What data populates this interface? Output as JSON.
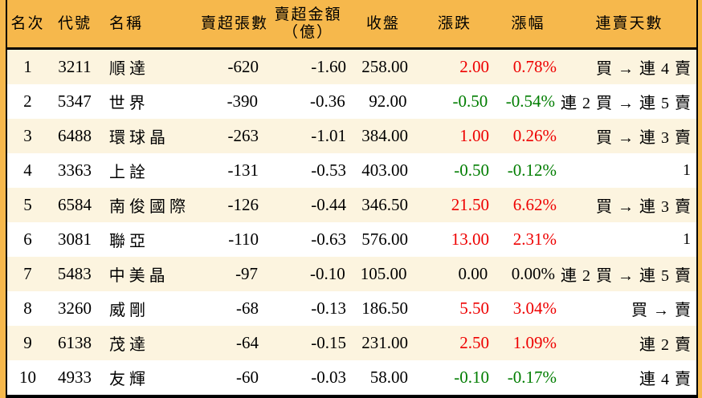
{
  "colors": {
    "page_bg": "#F6B84C",
    "header_bg": "#F6B84C",
    "row_stripe": "#FCF4DF",
    "row_plain": "#FFFFFF",
    "up_red": "#EE0000",
    "down_green": "#007D00",
    "text": "#000000",
    "border": "#000000"
  },
  "table": {
    "columns": [
      {
        "key": "rank",
        "label": "名次"
      },
      {
        "key": "code",
        "label": "代號"
      },
      {
        "key": "name",
        "label": "名稱"
      },
      {
        "key": "net_sell_lots",
        "label": "賣超張數"
      },
      {
        "key": "net_sell_amount",
        "label": "賣超金額（億）",
        "label_lines": [
          "賣超金額",
          "（億）"
        ]
      },
      {
        "key": "close",
        "label": "收盤"
      },
      {
        "key": "change",
        "label": "漲跌"
      },
      {
        "key": "change_pct",
        "label": "漲幅"
      },
      {
        "key": "streak",
        "label": "連賣天數"
      }
    ],
    "rows": [
      {
        "rank": "1",
        "code": "3211",
        "name": "順達",
        "net_sell_lots": "-620",
        "net_sell_amount": "-1.60",
        "close": "258.00",
        "change": "2.00",
        "change_pct": "0.78%",
        "streak": "買 → 連 4 賣",
        "trend": "up"
      },
      {
        "rank": "2",
        "code": "5347",
        "name": "世界",
        "net_sell_lots": "-390",
        "net_sell_amount": "-0.36",
        "close": "92.00",
        "change": "-0.50",
        "change_pct": "-0.54%",
        "streak": "連 2 買 → 連 5 賣",
        "trend": "down"
      },
      {
        "rank": "3",
        "code": "6488",
        "name": "環球晶",
        "net_sell_lots": "-263",
        "net_sell_amount": "-1.01",
        "close": "384.00",
        "change": "1.00",
        "change_pct": "0.26%",
        "streak": "買 → 連 3 賣",
        "trend": "up"
      },
      {
        "rank": "4",
        "code": "3363",
        "name": "上詮",
        "net_sell_lots": "-131",
        "net_sell_amount": "-0.53",
        "close": "403.00",
        "change": "-0.50",
        "change_pct": "-0.12%",
        "streak": "1",
        "trend": "down"
      },
      {
        "rank": "5",
        "code": "6584",
        "name": "南俊國際",
        "net_sell_lots": "-126",
        "net_sell_amount": "-0.44",
        "close": "346.50",
        "change": "21.50",
        "change_pct": "6.62%",
        "streak": "買 → 連 3 賣",
        "trend": "up"
      },
      {
        "rank": "6",
        "code": "3081",
        "name": "聯亞",
        "net_sell_lots": "-110",
        "net_sell_amount": "-0.63",
        "close": "576.00",
        "change": "13.00",
        "change_pct": "2.31%",
        "streak": "1",
        "trend": "up"
      },
      {
        "rank": "7",
        "code": "5483",
        "name": "中美晶",
        "net_sell_lots": "-97",
        "net_sell_amount": "-0.10",
        "close": "105.00",
        "change": "0.00",
        "change_pct": "0.00%",
        "streak": "連 2 買 → 連 5 賣",
        "trend": "flat"
      },
      {
        "rank": "8",
        "code": "3260",
        "name": "威剛",
        "net_sell_lots": "-68",
        "net_sell_amount": "-0.13",
        "close": "186.50",
        "change": "5.50",
        "change_pct": "3.04%",
        "streak": "買 → 賣",
        "trend": "up"
      },
      {
        "rank": "9",
        "code": "6138",
        "name": "茂達",
        "net_sell_lots": "-64",
        "net_sell_amount": "-0.15",
        "close": "231.00",
        "change": "2.50",
        "change_pct": "1.09%",
        "streak": "連 2 賣",
        "trend": "up"
      },
      {
        "rank": "10",
        "code": "4933",
        "name": "友輝",
        "net_sell_lots": "-60",
        "net_sell_amount": "-0.03",
        "close": "58.00",
        "change": "-0.10",
        "change_pct": "-0.17%",
        "streak": "連 4 賣",
        "trend": "down"
      }
    ]
  },
  "chart_data": {
    "type": "table",
    "title": "",
    "columns": [
      "名次",
      "代號",
      "名稱",
      "賣超張數",
      "賣超金額（億）",
      "收盤",
      "漲跌",
      "漲幅",
      "連賣天數"
    ],
    "rows": [
      [
        "1",
        "3211",
        "順達",
        -620,
        -1.6,
        258.0,
        2.0,
        "0.78%",
        "買 → 連 4 賣"
      ],
      [
        "2",
        "5347",
        "世界",
        -390,
        -0.36,
        92.0,
        -0.5,
        "-0.54%",
        "連 2 買 → 連 5 賣"
      ],
      [
        "3",
        "6488",
        "環球晶",
        -263,
        -1.01,
        384.0,
        1.0,
        "0.26%",
        "買 → 連 3 賣"
      ],
      [
        "4",
        "3363",
        "上詮",
        -131,
        -0.53,
        403.0,
        -0.5,
        "-0.12%",
        "1"
      ],
      [
        "5",
        "6584",
        "南俊國際",
        -126,
        -0.44,
        346.5,
        21.5,
        "6.62%",
        "買 → 連 3 賣"
      ],
      [
        "6",
        "3081",
        "聯亞",
        -110,
        -0.63,
        576.0,
        13.0,
        "2.31%",
        "1"
      ],
      [
        "7",
        "5483",
        "中美晶",
        -97,
        -0.1,
        105.0,
        0.0,
        "0.00%",
        "連 2 買 → 連 5 賣"
      ],
      [
        "8",
        "3260",
        "威剛",
        -68,
        -0.13,
        186.5,
        5.5,
        "3.04%",
        "買 → 賣"
      ],
      [
        "9",
        "6138",
        "茂達",
        -64,
        -0.15,
        231.0,
        2.5,
        "1.09%",
        "連 2 賣"
      ],
      [
        "10",
        "4933",
        "友輝",
        -60,
        -0.03,
        58.0,
        -0.1,
        "-0.17%",
        "連 4 賣"
      ]
    ],
    "notes": {
      "up_color_applies_to": [
        "漲跌",
        "漲幅"
      ],
      "red_means": "up",
      "green_means": "down",
      "stripe": "odd rows cream, even rows white"
    }
  }
}
